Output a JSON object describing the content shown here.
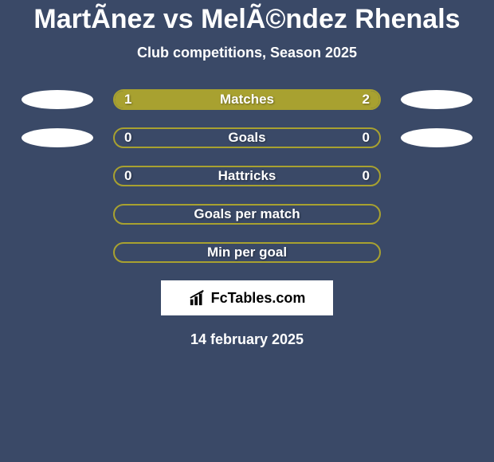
{
  "title": "MartÃnez vs MelÃ©ndez Rhenals",
  "subtitle": "Club competitions, Season 2025",
  "background_color": "#3a4967",
  "bar_border_color": "#a8a130",
  "bar_fill_color": "#a8a130",
  "badge_color": "#ffffff",
  "text_color": "#ffffff",
  "bars": [
    {
      "label": "Matches",
      "left_value": "1",
      "right_value": "2",
      "left_pct": 33,
      "right_pct": 67,
      "show_badges": true
    },
    {
      "label": "Goals",
      "left_value": "0",
      "right_value": "0",
      "left_pct": 0,
      "right_pct": 0,
      "show_badges": true
    },
    {
      "label": "Hattricks",
      "left_value": "0",
      "right_value": "0",
      "left_pct": 0,
      "right_pct": 0,
      "show_badges": false
    },
    {
      "label": "Goals per match",
      "left_value": "",
      "right_value": "",
      "left_pct": 0,
      "right_pct": 0,
      "show_badges": false
    },
    {
      "label": "Min per goal",
      "left_value": "",
      "right_value": "",
      "left_pct": 0,
      "right_pct": 0,
      "show_badges": false
    }
  ],
  "logo_text": "FcTables.com",
  "date": "14 february 2025"
}
